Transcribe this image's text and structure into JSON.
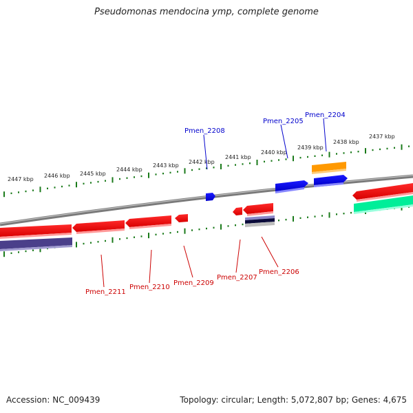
{
  "title": "Pseudomonas mendocina ymp, complete genome",
  "footer": {
    "accession": "Accession: NC_009439",
    "summary": "Topology: circular; Length: 5,072,807 bp; Genes: 4,675"
  },
  "scale_labels": [
    "2447 kbp",
    "2446 kbp",
    "2445 kbp",
    "2444 kbp",
    "2443 kbp",
    "2442 kbp",
    "2441 kbp",
    "2440 kbp",
    "2439 kbp",
    "2438 kbp",
    "2437 kbp"
  ],
  "gene_labels": {
    "forward": [
      "Pmen_2208",
      "Pmen_2205",
      "Pmen_2204"
    ],
    "reverse": [
      "Pmen_2211",
      "Pmen_2210",
      "Pmen_2209",
      "Pmen_2207",
      "Pmen_2206"
    ]
  },
  "colors": {
    "backbone": "#7a7a7a",
    "forward_gene": "#0000ee",
    "reverse_gene": "#ee0000",
    "other_gene": "#ff9900",
    "rna_feature": "#00ee99",
    "purple_feature": "#4a3f8a",
    "tick": "#1a7a1a"
  }
}
